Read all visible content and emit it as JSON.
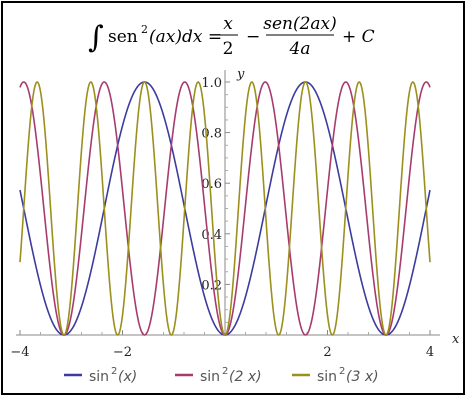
{
  "title": {
    "integral_sign": "∫",
    "lhs_prefix": "sen",
    "lhs_power": "2",
    "lhs_suffix": "(ax)dx =",
    "frac1_num": "x",
    "frac1_den": "2",
    "minus": "−",
    "frac2_num": "sen(2ax)",
    "frac2_den": "4a",
    "tail": "+ C"
  },
  "chart_data": {
    "type": "line",
    "xlabel": "x",
    "ylabel": "y",
    "xlim": [
      -4,
      4
    ],
    "ylim": [
      0,
      1
    ],
    "x_ticks": [
      -4,
      -2,
      0,
      2,
      4
    ],
    "x_tick_labels": [
      "−4",
      "−2",
      "",
      "2",
      "4"
    ],
    "y_ticks": [
      0.2,
      0.4,
      0.6,
      0.8,
      1.0
    ],
    "y_tick_labels": [
      "0.2",
      "0.4",
      "0.6",
      "0.8",
      "1.0"
    ],
    "grid": false,
    "legend_position": "bottom",
    "series": [
      {
        "name": "sin²(x)",
        "label_base": "sin",
        "label_power": "2",
        "label_arg": "(x)",
        "frequency": 1,
        "color": "#3c3c9e"
      },
      {
        "name": "sin²(2 x)",
        "label_base": "sin",
        "label_power": "2",
        "label_arg": "(2 x)",
        "frequency": 2,
        "color": "#a63c6e"
      },
      {
        "name": "sin²(3 x)",
        "label_base": "sin",
        "label_power": "2",
        "label_arg": "(3 x)",
        "frequency": 3,
        "color": "#9c8f1e"
      }
    ]
  }
}
